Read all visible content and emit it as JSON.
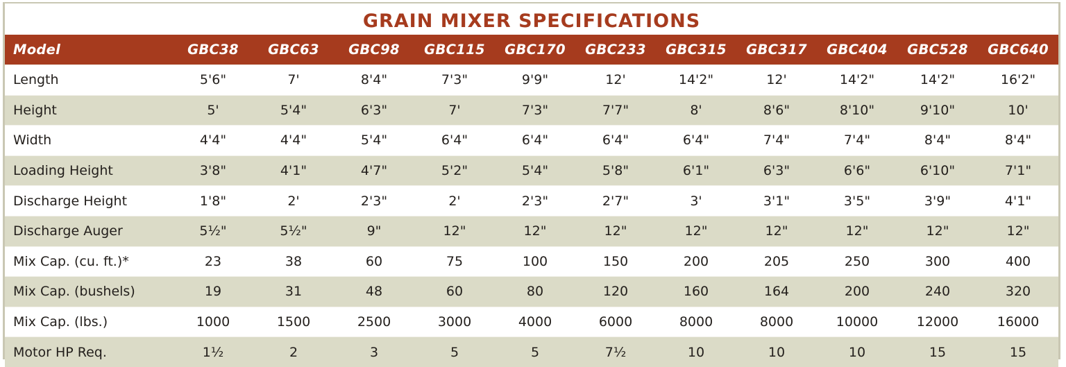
{
  "title": "GRAIN MIXER SPECIFICATIONS",
  "colors": {
    "title_text": "#a63b1e",
    "header_bg": "#a63b1e",
    "header_text": "#ffffff",
    "row_odd_bg": "#ffffff",
    "row_even_bg": "#dbdbc7",
    "border": "#c9c7b3",
    "body_text": "#231f1c"
  },
  "table": {
    "header_label": "Model",
    "models": [
      "GBC38",
      "GBC63",
      "GBC98",
      "GBC115",
      "GBC170",
      "GBC233",
      "GBC315",
      "GBC317",
      "GBC404",
      "GBC528",
      "GBC640"
    ],
    "rows": [
      {
        "label": "Length",
        "values": [
          "5'6\"",
          "7'",
          "8'4\"",
          "7'3\"",
          "9'9\"",
          "12'",
          "14'2\"",
          "12'",
          "14'2\"",
          "14'2\"",
          "16'2\""
        ]
      },
      {
        "label": "Height",
        "values": [
          "5'",
          "5'4\"",
          "6'3\"",
          "7'",
          "7'3\"",
          "7'7\"",
          "8'",
          "8'6\"",
          "8'10\"",
          "9'10\"",
          "10'"
        ]
      },
      {
        "label": "Width",
        "values": [
          "4'4\"",
          "4'4\"",
          "5'4\"",
          "6'4\"",
          "6'4\"",
          "6'4\"",
          "6'4\"",
          "7'4\"",
          "7'4\"",
          "8'4\"",
          "8'4\""
        ]
      },
      {
        "label": "Loading Height",
        "values": [
          "3'8\"",
          "4'1\"",
          "4'7\"",
          "5'2\"",
          "5'4\"",
          "5'8\"",
          "6'1\"",
          "6'3\"",
          "6'6\"",
          "6'10\"",
          "7'1\""
        ]
      },
      {
        "label": "Discharge Height",
        "values": [
          "1'8\"",
          "2'",
          "2'3\"",
          "2'",
          "2'3\"",
          "2'7\"",
          "3'",
          "3'1\"",
          "3'5\"",
          "3'9\"",
          "4'1\""
        ]
      },
      {
        "label": "Discharge Auger",
        "values": [
          "5½\"",
          "5½\"",
          "9\"",
          "12\"",
          "12\"",
          "12\"",
          "12\"",
          "12\"",
          "12\"",
          "12\"",
          "12\""
        ]
      },
      {
        "label": "Mix Cap. (cu. ft.)*",
        "values": [
          "23",
          "38",
          "60",
          "75",
          "100",
          "150",
          "200",
          "205",
          "250",
          "300",
          "400"
        ]
      },
      {
        "label": "Mix Cap. (bushels)",
        "values": [
          "19",
          "31",
          "48",
          "60",
          "80",
          "120",
          "160",
          "164",
          "200",
          "240",
          "320"
        ]
      },
      {
        "label": "Mix Cap. (lbs.)",
        "values": [
          "1000",
          "1500",
          "2500",
          "3000",
          "4000",
          "6000",
          "8000",
          "8000",
          "10000",
          "12000",
          "16000"
        ]
      },
      {
        "label": "Motor HP Req.",
        "values": [
          "1½",
          "2",
          "3",
          "5",
          "5",
          "7½",
          "10",
          "10",
          "10",
          "15",
          "15"
        ]
      }
    ]
  }
}
